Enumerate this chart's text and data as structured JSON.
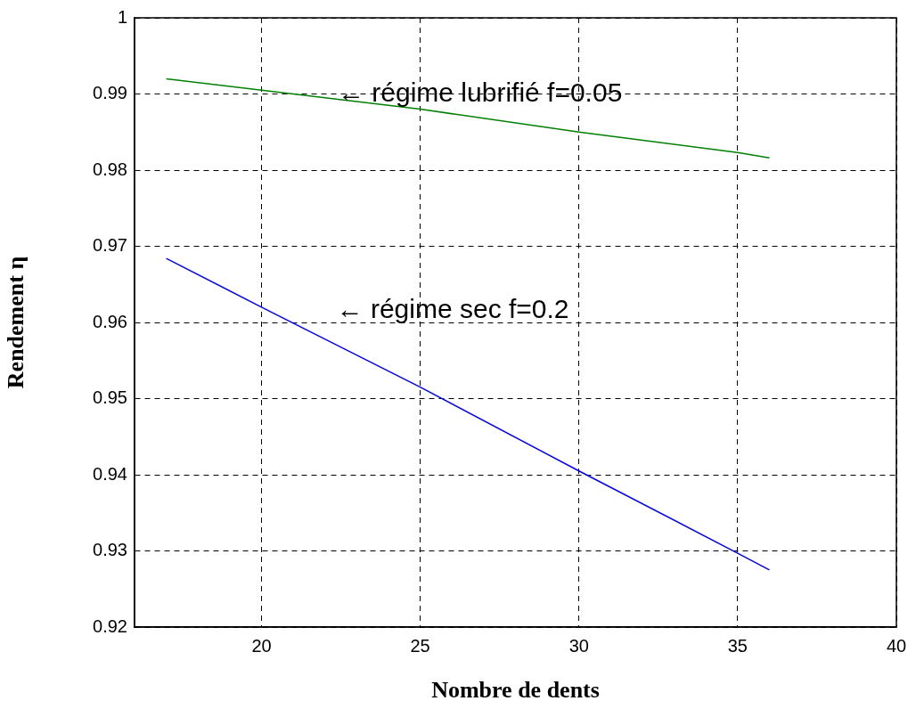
{
  "chart_data": {
    "type": "line",
    "xlabel": "Nombre de dents",
    "ylabel": "Rendement η",
    "xlim": [
      16,
      40
    ],
    "xticks": [
      20,
      25,
      30,
      35,
      40
    ],
    "ylim": [
      0.92,
      1
    ],
    "yticks": [
      0.92,
      0.93,
      0.94,
      0.95,
      0.96,
      0.97,
      0.98,
      0.99,
      1
    ],
    "grid": true,
    "line_style": "solid",
    "marker": "none",
    "series": [
      {
        "color": "#008000",
        "x": [
          17,
          20,
          25,
          30,
          35,
          36
        ],
        "values": [
          0.992,
          0.9905,
          0.988,
          0.985,
          0.9823,
          0.9816
        ]
      },
      {
        "color": "#0000ff",
        "x": [
          17,
          20,
          25,
          30,
          35,
          36
        ],
        "values": [
          0.9684,
          0.962,
          0.9515,
          0.9405,
          0.9297,
          0.9275
        ]
      }
    ],
    "annotations": [
      {
        "text": "← régime lubrifié f=0.05",
        "x": 22.4,
        "y": 0.99
      },
      "← régime sec f=0.2"
    ]
  }
}
